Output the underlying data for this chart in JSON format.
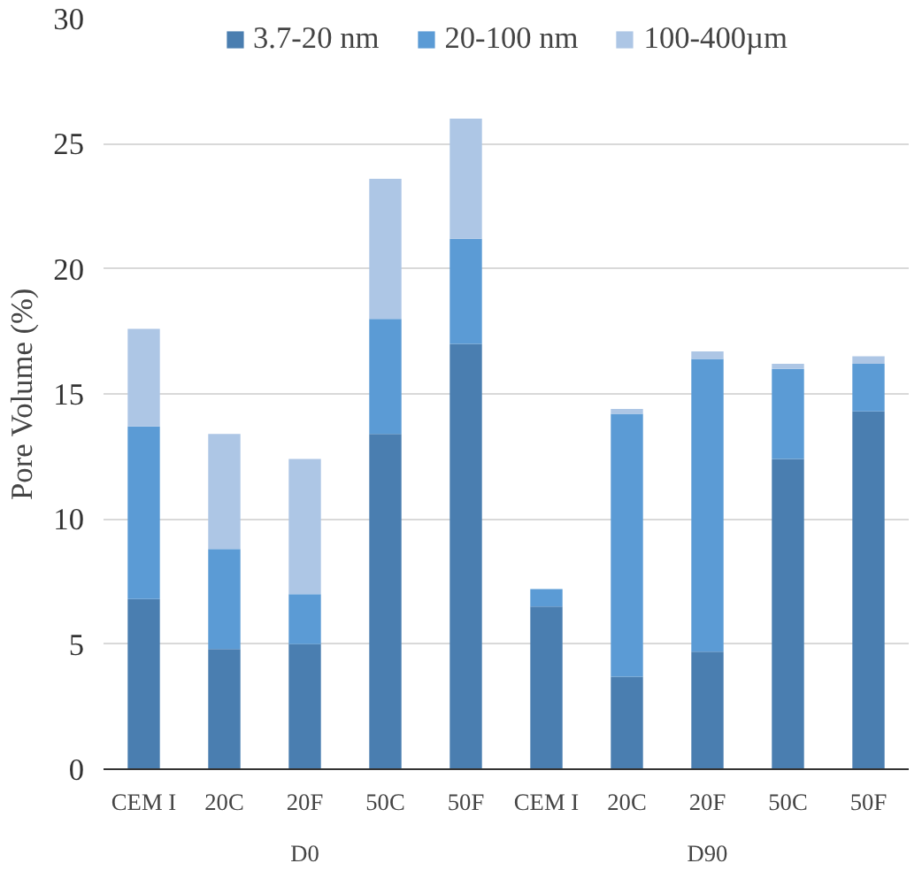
{
  "chart_data": {
    "type": "bar",
    "stacked": true,
    "ylabel": "Pore Volume (%)",
    "categories": [
      "CEM I",
      "20C",
      "20F",
      "50C",
      "50F",
      "CEM I",
      "20C",
      "20F",
      "50C",
      "50F"
    ],
    "annotations": [
      "D0",
      "D90"
    ],
    "series": [
      {
        "name": "3.7-20 nm",
        "color": "#4a7eb0",
        "values": [
          6.8,
          4.8,
          5.0,
          13.4,
          17.0,
          6.5,
          3.7,
          4.7,
          12.4,
          14.3
        ]
      },
      {
        "name": "20-100 nm",
        "color": "#5b9bd5",
        "values": [
          6.9,
          4.0,
          2.0,
          4.6,
          4.2,
          0.7,
          10.5,
          11.7,
          3.6,
          1.9
        ]
      },
      {
        "name": "100-400µm",
        "color": "#adc6e5",
        "values": [
          3.9,
          4.6,
          5.4,
          5.6,
          4.8,
          0.0,
          0.2,
          0.3,
          0.2,
          0.3
        ]
      }
    ],
    "ylim": [
      0,
      30
    ],
    "yticks": [
      0,
      5,
      10,
      15,
      20,
      25,
      30
    ],
    "grid": "y",
    "legend": "top"
  }
}
